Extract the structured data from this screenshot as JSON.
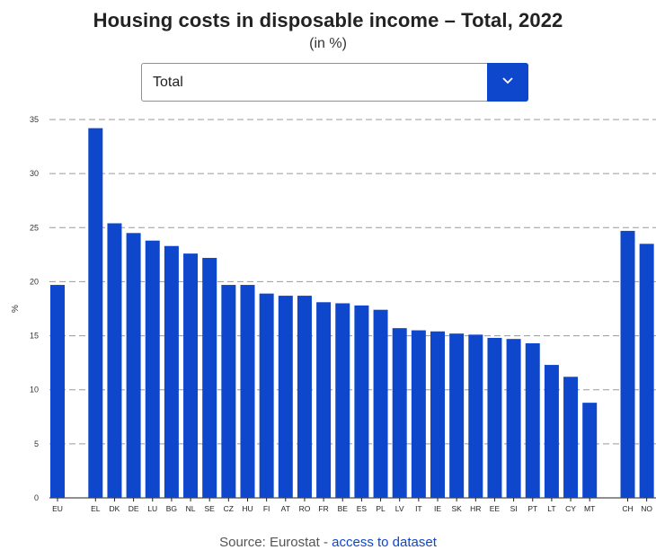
{
  "header": {
    "title": "Housing costs in disposable income – Total, 2022",
    "subtitle": "(in %)"
  },
  "filter": {
    "selected": "Total",
    "toggle_icon": "chevron-down-icon"
  },
  "footer": {
    "source_prefix": "Source: Eurostat - ",
    "source_link": "access to dataset"
  },
  "colors": {
    "bar": "#0e47cb",
    "accent": "#0e47cb"
  },
  "chart_data": {
    "type": "bar",
    "ylabel": "%",
    "ylim": [
      0,
      35
    ],
    "yticks": [
      0,
      5,
      10,
      15,
      20,
      25,
      30,
      35
    ],
    "grid": true,
    "categories": [
      "EU",
      "",
      "EL",
      "DK",
      "DE",
      "LU",
      "BG",
      "NL",
      "SE",
      "CZ",
      "HU",
      "FI",
      "AT",
      "RO",
      "FR",
      "BE",
      "ES",
      "PL",
      "LV",
      "IT",
      "IE",
      "SK",
      "HR",
      "EE",
      "SI",
      "PT",
      "LT",
      "CY",
      "MT",
      "",
      "CH",
      "NO"
    ],
    "values": [
      19.7,
      null,
      34.2,
      25.4,
      24.5,
      23.8,
      23.3,
      22.6,
      22.2,
      19.7,
      19.7,
      18.9,
      18.7,
      18.7,
      18.1,
      18.0,
      17.8,
      17.4,
      15.7,
      15.5,
      15.4,
      15.2,
      15.1,
      14.8,
      14.7,
      14.3,
      12.3,
      11.2,
      8.8,
      null,
      24.7,
      23.5
    ]
  }
}
